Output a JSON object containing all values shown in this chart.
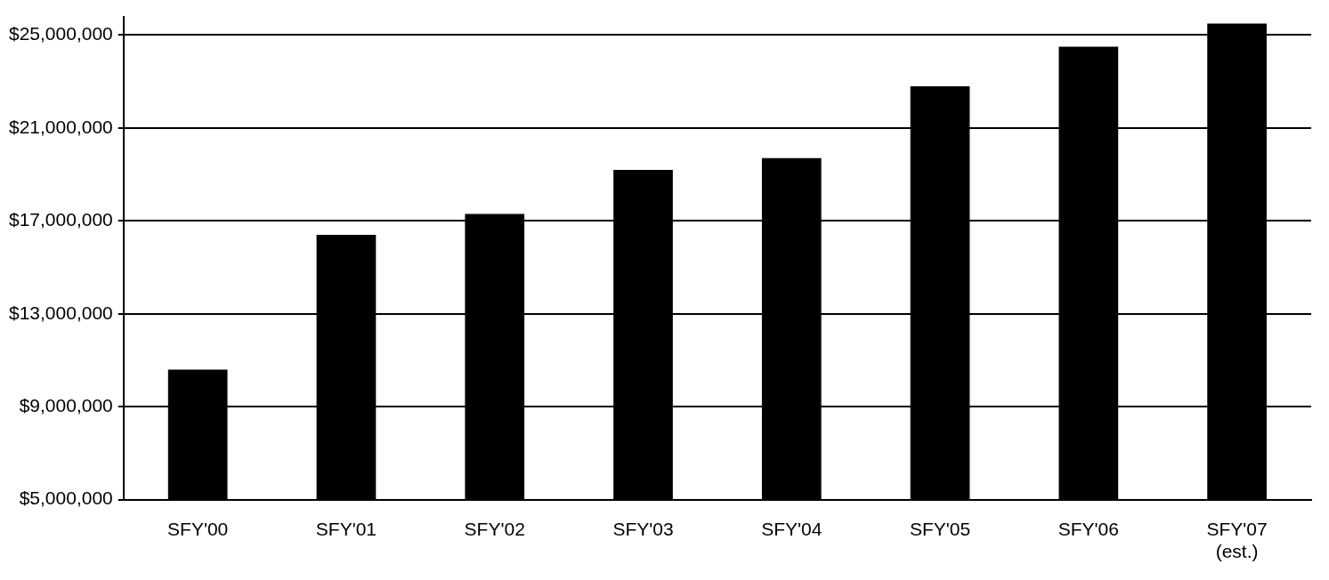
{
  "chart_data": {
    "type": "bar",
    "categories": [
      "SFY'00",
      "SFY'01",
      "SFY'02",
      "SFY'03",
      "SFY'04",
      "SFY'05",
      "SFY'06",
      "SFY'07\n(est.)"
    ],
    "values": [
      10600000,
      16400000,
      17300000,
      19200000,
      19700000,
      22800000,
      24500000,
      25500000
    ],
    "color": "#000000",
    "ylim": [
      5000000,
      25800000
    ],
    "yticks": [
      {
        "value": 5000000,
        "label": "$5,000,000"
      },
      {
        "value": 9000000,
        "label": "$9,000,000"
      },
      {
        "value": 13000000,
        "label": "$13,000,000"
      },
      {
        "value": 17000000,
        "label": "$17,000,000"
      },
      {
        "value": 21000000,
        "label": "$21,000,000"
      },
      {
        "value": 25000000,
        "label": "$25,000,000"
      }
    ],
    "grid": "y",
    "legend": false
  }
}
